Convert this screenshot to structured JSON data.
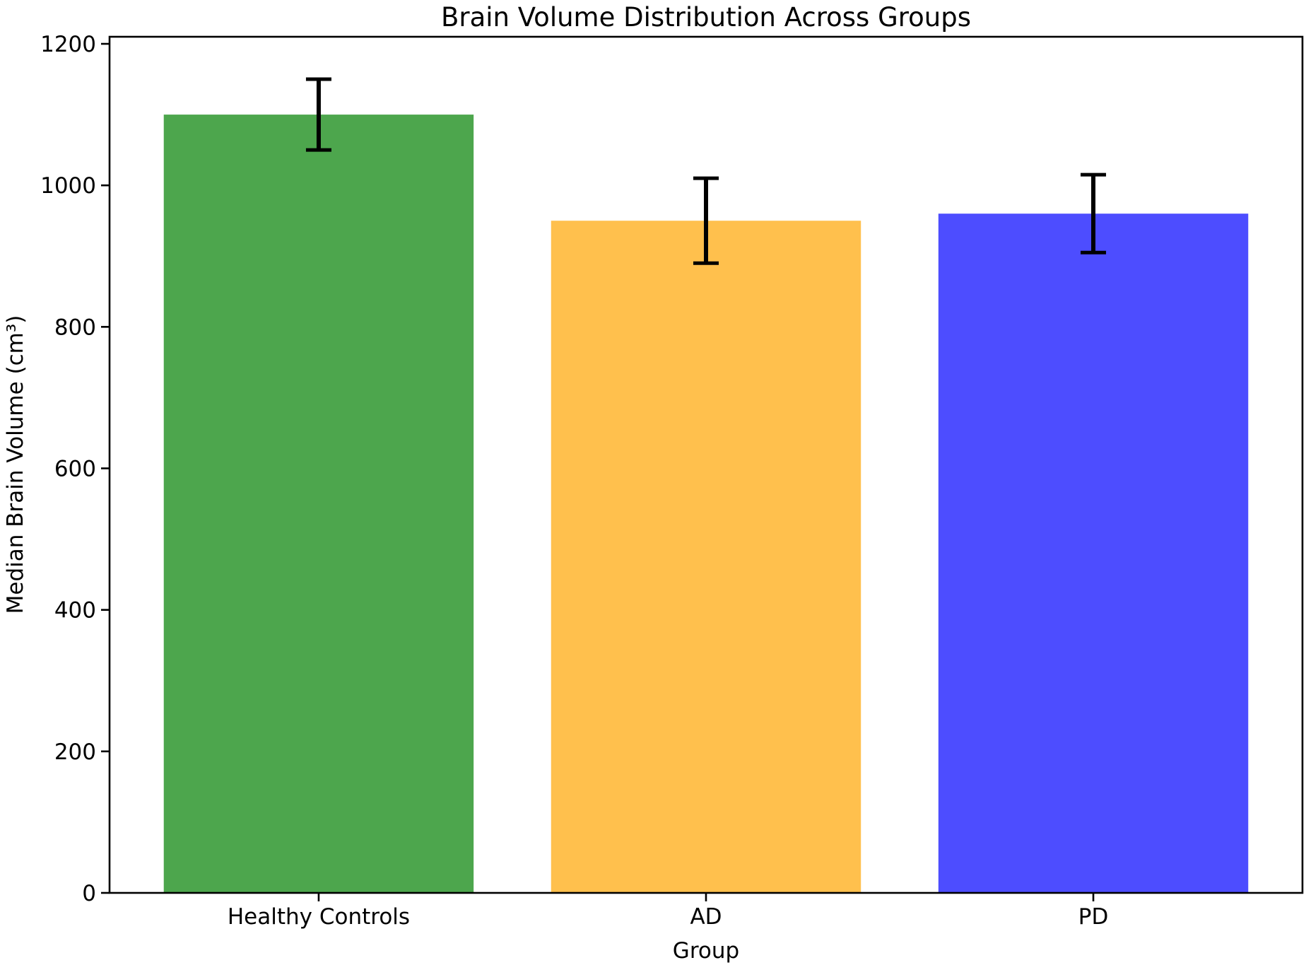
{
  "chart_data": {
    "type": "bar",
    "title": "Brain Volume Distribution Across Groups",
    "xlabel": "Group",
    "ylabel": "Median Brain Volume (cm³)",
    "categories": [
      "Healthy Controls",
      "AD",
      "PD"
    ],
    "values": [
      1100,
      950,
      960
    ],
    "error_bars": [
      50,
      60,
      55
    ],
    "bar_colors": [
      "#4DA64D",
      "#FFC04D",
      "#4D4DFF"
    ],
    "error_color": "#000000",
    "axis_color": "#000000",
    "background_color": "#ffffff",
    "yticks": [
      0,
      200,
      400,
      600,
      800,
      1000,
      1200
    ],
    "ylim": [
      0,
      1210
    ],
    "grid": false,
    "legend_position": "none"
  }
}
